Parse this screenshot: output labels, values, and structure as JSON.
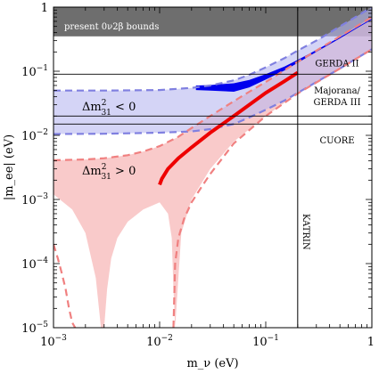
{
  "chart_data": {
    "type": "line",
    "title": "",
    "xlabel": "m_ν (eV)",
    "ylabel": "|m_ee| (eV)",
    "xscale": "log",
    "yscale": "log",
    "xlim": [
      0.001,
      1
    ],
    "ylim": [
      1e-05,
      1
    ],
    "x_ticks": [
      {
        "value": 0.001,
        "base": "10",
        "exp": "−3"
      },
      {
        "value": 0.01,
        "base": "10",
        "exp": "−2"
      },
      {
        "value": 0.1,
        "base": "10",
        "exp": "−1"
      },
      {
        "value": 1,
        "base": "1",
        "exp": ""
      }
    ],
    "y_ticks": [
      {
        "value": 1e-05,
        "base": "10",
        "exp": "−5"
      },
      {
        "value": 0.0001,
        "base": "10",
        "exp": "−4"
      },
      {
        "value": 0.001,
        "base": "10",
        "exp": "−3"
      },
      {
        "value": 0.01,
        "base": "10",
        "exp": "−2"
      },
      {
        "value": 0.1,
        "base": "10",
        "exp": "−1"
      },
      {
        "value": 1,
        "base": "1",
        "exp": ""
      }
    ],
    "bounds_region": {
      "label": "present 0ν2β bounds",
      "y_from": 0.35,
      "y_to": 1,
      "color": "#6e6e6e"
    },
    "experiment_lines": [
      {
        "name": "GERDA II",
        "y": 0.09
      },
      {
        "name": "Majorana/ GERDA III",
        "y": 0.02
      },
      {
        "name": "CUORE",
        "y": 0.015
      }
    ],
    "katrin": {
      "label": "KATRIN",
      "x": 0.2
    },
    "annotations": [
      {
        "text": "Δm²₃₁ < 0",
        "base": "Δm",
        "sup": "2",
        "sub": "31",
        "rel": "< 0"
      },
      {
        "text": "Δm²₃₁ > 0",
        "base": "Δm",
        "sup": "2",
        "sub": "31",
        "rel": "> 0"
      }
    ],
    "series": [
      {
        "role": "inverted-band-upper",
        "color": "#8080e0",
        "x": [
          0.001,
          0.003,
          0.01,
          0.02,
          0.03,
          0.05,
          0.07,
          0.1,
          0.15,
          0.2,
          0.3,
          0.5,
          0.7,
          1
        ],
        "y": [
          0.05,
          0.05,
          0.051,
          0.055,
          0.06,
          0.072,
          0.088,
          0.115,
          0.16,
          0.21,
          0.3,
          0.5,
          0.7,
          1
        ]
      },
      {
        "role": "inverted-band-lower",
        "color": "#8080e0",
        "x": [
          0.001,
          0.003,
          0.01,
          0.02,
          0.03,
          0.05,
          0.07,
          0.1,
          0.15,
          0.2,
          0.3,
          0.5,
          0.7,
          1
        ],
        "y": [
          0.0105,
          0.0106,
          0.011,
          0.0115,
          0.0125,
          0.015,
          0.019,
          0.025,
          0.035,
          0.046,
          0.068,
          0.11,
          0.155,
          0.22
        ]
      },
      {
        "role": "normal-band-upper",
        "color": "#f08080",
        "x": [
          0.001,
          0.002,
          0.003,
          0.005,
          0.007,
          0.01,
          0.015,
          0.02,
          0.03,
          0.05,
          0.07,
          0.1,
          0.2,
          0.3,
          0.5,
          1
        ],
        "y": [
          0.0041,
          0.0042,
          0.0044,
          0.0049,
          0.0056,
          0.0068,
          0.0095,
          0.013,
          0.02,
          0.034,
          0.048,
          0.068,
          0.14,
          0.21,
          0.35,
          0.7
        ]
      },
      {
        "role": "normal-band-lower",
        "color": "#f08080",
        "x": [
          0.001,
          0.0015,
          0.002,
          0.0025,
          0.0028,
          0.003,
          0.0032,
          0.0035,
          0.004,
          0.005,
          0.007,
          0.01,
          0.012,
          0.013,
          0.0135,
          0.014,
          0.016,
          0.02,
          0.03,
          0.05,
          0.1,
          0.2,
          0.5,
          1
        ],
        "y": [
          0.0012,
          0.0007,
          0.0003,
          6e-05,
          1e-05,
          1e-05,
          4e-05,
          0.00012,
          0.00025,
          0.00045,
          0.0007,
          0.0009,
          0.0006,
          0.00025,
          4e-05,
          1e-05,
          0.0003,
          0.001,
          0.003,
          0.008,
          0.02,
          0.045,
          0.11,
          0.22
        ]
      },
      {
        "role": "inverted-upper-dashed",
        "style": "dashed",
        "color": "#8080e0",
        "x": [
          0.001,
          0.003,
          0.01,
          0.02,
          0.03,
          0.05,
          0.07,
          0.1,
          0.15,
          0.2,
          0.3,
          0.5,
          0.7,
          1
        ],
        "y": [
          0.05,
          0.05,
          0.051,
          0.055,
          0.06,
          0.072,
          0.088,
          0.115,
          0.16,
          0.21,
          0.3,
          0.5,
          0.7,
          1
        ]
      },
      {
        "role": "inverted-lower-dashed",
        "style": "dashed",
        "color": "#8080e0",
        "x": [
          0.001,
          0.003,
          0.01,
          0.02,
          0.03,
          0.05,
          0.07,
          0.1,
          0.15,
          0.2,
          0.3,
          0.5,
          0.7,
          1
        ],
        "y": [
          0.0105,
          0.0106,
          0.011,
          0.0115,
          0.0125,
          0.015,
          0.019,
          0.025,
          0.035,
          0.046,
          0.068,
          0.11,
          0.155,
          0.22
        ]
      },
      {
        "role": "normal-upper-dashed",
        "style": "dashed",
        "color": "#f08080",
        "x": [
          0.001,
          0.002,
          0.003,
          0.005,
          0.007,
          0.01,
          0.015,
          0.02,
          0.03,
          0.05,
          0.07,
          0.1,
          0.2,
          0.3,
          0.5,
          1
        ],
        "y": [
          0.0041,
          0.0042,
          0.0044,
          0.0049,
          0.0056,
          0.0068,
          0.0095,
          0.013,
          0.02,
          0.034,
          0.048,
          0.068,
          0.14,
          0.21,
          0.35,
          0.7
        ]
      },
      {
        "role": "normal-lower-dashed-left",
        "style": "dashed",
        "color": "#f08080",
        "x": [
          0.001,
          0.0011,
          0.0012,
          0.0013,
          0.0014,
          0.0015,
          0.0016
        ],
        "y": [
          0.0002,
          0.00012,
          7e-05,
          4e-05,
          2e-05,
          1.2e-05,
          1e-05
        ]
      },
      {
        "role": "normal-lower-dashed-right",
        "style": "dashed",
        "color": "#f08080",
        "x": [
          0.0135,
          0.014,
          0.015,
          0.017,
          0.02,
          0.025,
          0.03,
          0.05,
          0.1,
          0.2,
          0.5,
          1
        ],
        "y": [
          1e-05,
          0.0001,
          0.00025,
          0.0005,
          0.0009,
          0.0016,
          0.0025,
          0.0075,
          0.02,
          0.045,
          0.11,
          0.22
        ]
      },
      {
        "role": "normal-best-fit",
        "style": "solid-thick",
        "color": "#ee0000",
        "x": [
          0.01,
          0.0105,
          0.012,
          0.015,
          0.02,
          0.03,
          0.05,
          0.07,
          0.1,
          0.15,
          0.2
        ],
        "y": [
          0.0017,
          0.0021,
          0.003,
          0.0044,
          0.0065,
          0.011,
          0.02,
          0.03,
          0.046,
          0.07,
          0.095
        ]
      },
      {
        "role": "inverted-best-fit-upper",
        "style": "band-thick",
        "color": "#0000ee",
        "x": [
          0.022,
          0.03,
          0.05,
          0.07,
          0.1,
          0.15,
          0.2,
          0.3,
          0.5,
          0.7,
          1
        ],
        "y": [
          0.06,
          0.061,
          0.065,
          0.073,
          0.09,
          0.118,
          0.15,
          0.215,
          0.34,
          0.47,
          0.66
        ]
      },
      {
        "role": "inverted-best-fit-lower",
        "style": "band-thick",
        "color": "#0000ee",
        "x": [
          0.022,
          0.03,
          0.05,
          0.07,
          0.1,
          0.15,
          0.2,
          0.3,
          0.5,
          0.7,
          1
        ],
        "y": [
          0.051,
          0.05,
          0.048,
          0.056,
          0.074,
          0.103,
          0.135,
          0.2,
          0.325,
          0.455,
          0.64
        ]
      }
    ]
  }
}
